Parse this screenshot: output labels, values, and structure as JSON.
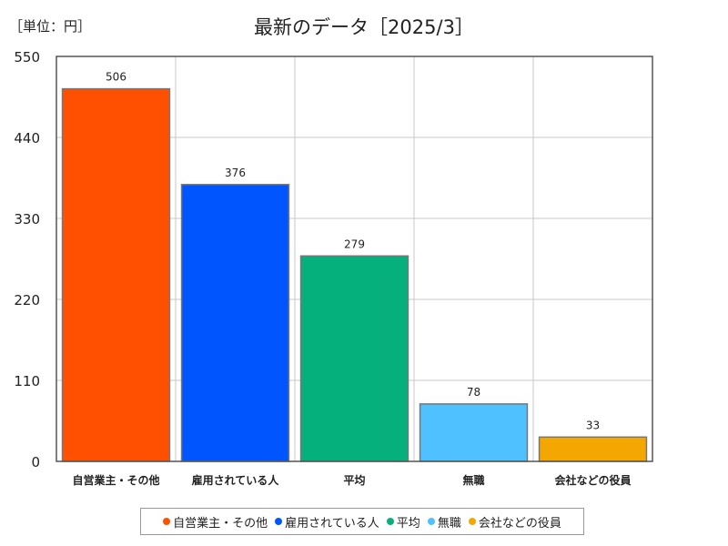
{
  "header": {
    "unit": "［単位：円］",
    "title": "最新のデータ［2025/3］"
  },
  "chart_data": {
    "type": "bar",
    "title": "最新のデータ［2025/3］",
    "unit_label": "［単位：円］",
    "categories": [
      "自営業主・その他",
      "雇用されている人",
      "平均",
      "無職",
      "会社などの役員"
    ],
    "values": [
      506,
      376,
      279,
      78,
      33
    ],
    "colors": [
      "#ff4f00",
      "#0055ff",
      "#06b07c",
      "#4fc1ff",
      "#f4a700"
    ],
    "ylim": [
      0,
      550
    ],
    "yticks": [
      0,
      110,
      220,
      330,
      440,
      550
    ],
    "grid": true,
    "legend_position": "bottom"
  }
}
